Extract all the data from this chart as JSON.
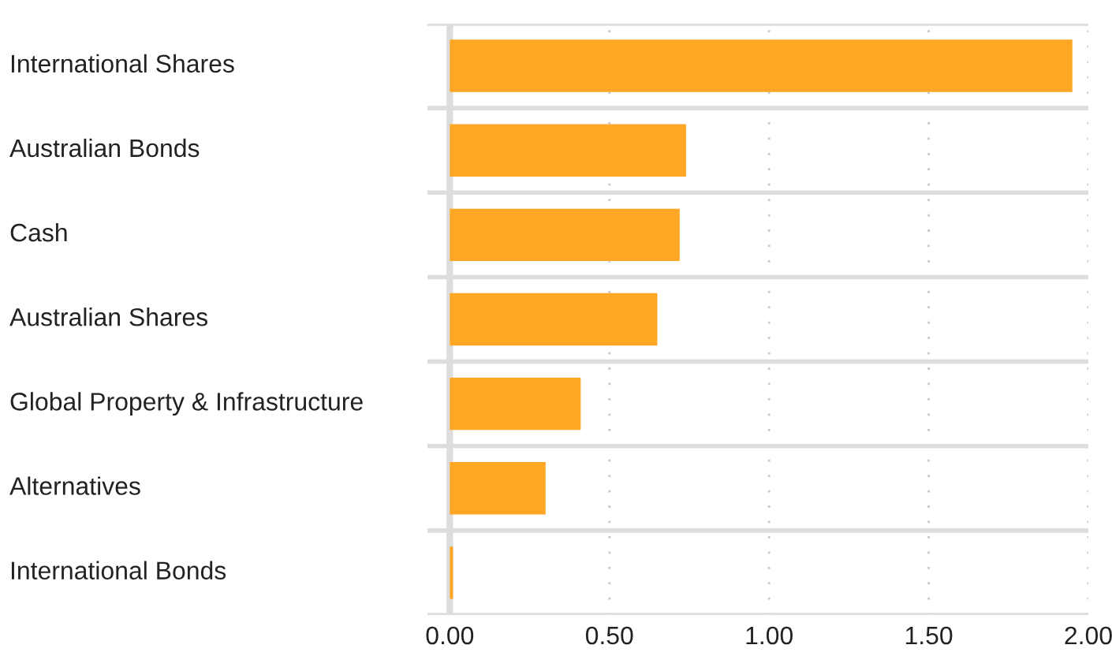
{
  "chart_data": {
    "type": "bar",
    "orientation": "horizontal",
    "categories": [
      "International Shares",
      "Australian Bonds",
      "Cash",
      "Australian Shares",
      "Global Property & Infrastructure",
      "Alternatives",
      "International Bonds"
    ],
    "values": [
      1.95,
      0.74,
      0.72,
      0.65,
      0.41,
      0.3,
      0.01
    ],
    "color": "#fda724",
    "xlim": [
      -0.07,
      2.0
    ],
    "xticks": [
      {
        "value": 0,
        "label": "0.00"
      },
      {
        "value": 0.5,
        "label": "0.50"
      },
      {
        "value": 1.0,
        "label": "1.00"
      },
      {
        "value": 1.5,
        "label": "1.50"
      },
      {
        "value": 2.0,
        "label": "2.00"
      }
    ],
    "grid": "x"
  }
}
